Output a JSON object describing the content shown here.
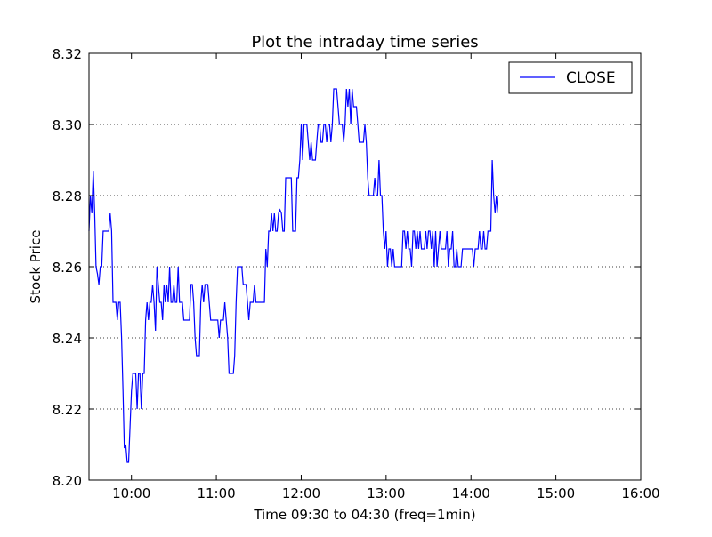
{
  "chart_data": {
    "type": "line",
    "title": "Plot the intraday time series",
    "xlabel": "Time 09:30 to 04:30 (freq=1min)",
    "ylabel": "Stock Price",
    "xlim": [
      "09:30",
      "16:00"
    ],
    "ylim": [
      8.2,
      8.32
    ],
    "x_ticks": [
      "10:00",
      "11:00",
      "12:00",
      "13:00",
      "14:00",
      "15:00",
      "16:00"
    ],
    "y_ticks": [
      "8.20",
      "8.22",
      "8.24",
      "8.26",
      "8.28",
      "8.30",
      "8.32"
    ],
    "grid": "horizontal-dotted",
    "legend": {
      "placement": "top-right",
      "entries": [
        "CLOSE"
      ]
    },
    "series": [
      {
        "name": "CLOSE",
        "color": "#0000ff",
        "points": [
          [
            "09:30",
            8.27
          ],
          [
            "09:31",
            8.28
          ],
          [
            "09:32",
            8.275
          ],
          [
            "09:33",
            8.287
          ],
          [
            "09:34",
            8.275
          ],
          [
            "09:35",
            8.26
          ],
          [
            "09:36",
            8.258
          ],
          [
            "09:37",
            8.255
          ],
          [
            "09:38",
            8.26
          ],
          [
            "09:39",
            8.26
          ],
          [
            "09:40",
            8.27
          ],
          [
            "09:41",
            8.27
          ],
          [
            "09:42",
            8.27
          ],
          [
            "09:43",
            8.27
          ],
          [
            "09:44",
            8.27
          ],
          [
            "09:45",
            8.275
          ],
          [
            "09:46",
            8.27
          ],
          [
            "09:47",
            8.25
          ],
          [
            "09:48",
            8.25
          ],
          [
            "09:49",
            8.25
          ],
          [
            "09:50",
            8.245
          ],
          [
            "09:51",
            8.25
          ],
          [
            "09:52",
            8.25
          ],
          [
            "09:53",
            8.24
          ],
          [
            "09:54",
            8.225
          ],
          [
            "09:55",
            8.209
          ],
          [
            "09:56",
            8.21
          ],
          [
            "09:57",
            8.205
          ],
          [
            "09:58",
            8.205
          ],
          [
            "09:59",
            8.215
          ],
          [
            "10:00",
            8.225
          ],
          [
            "10:01",
            8.23
          ],
          [
            "10:02",
            8.23
          ],
          [
            "10:03",
            8.23
          ],
          [
            "10:04",
            8.22
          ],
          [
            "10:05",
            8.23
          ],
          [
            "10:06",
            8.23
          ],
          [
            "10:07",
            8.22
          ],
          [
            "10:08",
            8.23
          ],
          [
            "10:09",
            8.23
          ],
          [
            "10:10",
            8.245
          ],
          [
            "10:11",
            8.25
          ],
          [
            "10:12",
            8.245
          ],
          [
            "10:13",
            8.25
          ],
          [
            "10:14",
            8.25
          ],
          [
            "10:15",
            8.255
          ],
          [
            "10:16",
            8.25
          ],
          [
            "10:17",
            8.242
          ],
          [
            "10:18",
            8.26
          ],
          [
            "10:19",
            8.255
          ],
          [
            "10:20",
            8.25
          ],
          [
            "10:21",
            8.25
          ],
          [
            "10:22",
            8.245
          ],
          [
            "10:23",
            8.255
          ],
          [
            "10:24",
            8.25
          ],
          [
            "10:25",
            8.255
          ],
          [
            "10:26",
            8.25
          ],
          [
            "10:27",
            8.26
          ],
          [
            "10:28",
            8.25
          ],
          [
            "10:29",
            8.25
          ],
          [
            "10:30",
            8.255
          ],
          [
            "10:31",
            8.25
          ],
          [
            "10:32",
            8.25
          ],
          [
            "10:33",
            8.26
          ],
          [
            "10:34",
            8.25
          ],
          [
            "10:35",
            8.25
          ],
          [
            "10:36",
            8.25
          ],
          [
            "10:37",
            8.245
          ],
          [
            "10:38",
            8.245
          ],
          [
            "10:39",
            8.245
          ],
          [
            "10:40",
            8.245
          ],
          [
            "10:41",
            8.245
          ],
          [
            "10:42",
            8.255
          ],
          [
            "10:43",
            8.255
          ],
          [
            "10:44",
            8.25
          ],
          [
            "10:45",
            8.24
          ],
          [
            "10:46",
            8.235
          ],
          [
            "10:47",
            8.235
          ],
          [
            "10:48",
            8.235
          ],
          [
            "10:49",
            8.25
          ],
          [
            "10:50",
            8.255
          ],
          [
            "10:51",
            8.25
          ],
          [
            "10:52",
            8.255
          ],
          [
            "10:53",
            8.255
          ],
          [
            "10:54",
            8.255
          ],
          [
            "10:55",
            8.25
          ],
          [
            "10:56",
            8.245
          ],
          [
            "10:57",
            8.245
          ],
          [
            "10:58",
            8.245
          ],
          [
            "10:59",
            8.245
          ],
          [
            "11:00",
            8.245
          ],
          [
            "11:01",
            8.245
          ],
          [
            "11:02",
            8.24
          ],
          [
            "11:03",
            8.245
          ],
          [
            "11:04",
            8.245
          ],
          [
            "11:05",
            8.245
          ],
          [
            "11:06",
            8.25
          ],
          [
            "11:07",
            8.245
          ],
          [
            "11:08",
            8.24
          ],
          [
            "11:09",
            8.23
          ],
          [
            "11:10",
            8.23
          ],
          [
            "11:11",
            8.23
          ],
          [
            "11:12",
            8.23
          ],
          [
            "11:13",
            8.235
          ],
          [
            "11:14",
            8.25
          ],
          [
            "11:15",
            8.26
          ],
          [
            "11:16",
            8.26
          ],
          [
            "11:17",
            8.26
          ],
          [
            "11:18",
            8.26
          ],
          [
            "11:19",
            8.255
          ],
          [
            "11:20",
            8.255
          ],
          [
            "11:21",
            8.255
          ],
          [
            "11:22",
            8.25
          ],
          [
            "11:23",
            8.245
          ],
          [
            "11:24",
            8.25
          ],
          [
            "11:25",
            8.25
          ],
          [
            "11:26",
            8.25
          ],
          [
            "11:27",
            8.255
          ],
          [
            "11:28",
            8.25
          ],
          [
            "11:29",
            8.25
          ],
          [
            "11:30",
            8.25
          ],
          [
            "11:31",
            8.25
          ],
          [
            "11:32",
            8.25
          ],
          [
            "11:33",
            8.25
          ],
          [
            "11:34",
            8.25
          ],
          [
            "11:35",
            8.265
          ],
          [
            "11:36",
            8.26
          ],
          [
            "11:37",
            8.27
          ],
          [
            "11:38",
            8.27
          ],
          [
            "11:39",
            8.275
          ],
          [
            "11:40",
            8.27
          ],
          [
            "11:41",
            8.275
          ],
          [
            "11:42",
            8.27
          ],
          [
            "11:43",
            8.27
          ],
          [
            "11:44",
            8.275
          ],
          [
            "11:45",
            8.276
          ],
          [
            "11:46",
            8.275
          ],
          [
            "11:47",
            8.27
          ],
          [
            "11:48",
            8.27
          ],
          [
            "11:49",
            8.285
          ],
          [
            "11:50",
            8.285
          ],
          [
            "11:51",
            8.285
          ],
          [
            "11:52",
            8.285
          ],
          [
            "11:53",
            8.285
          ],
          [
            "11:54",
            8.27
          ],
          [
            "11:55",
            8.27
          ],
          [
            "11:56",
            8.27
          ],
          [
            "11:57",
            8.285
          ],
          [
            "11:58",
            8.285
          ],
          [
            "11:59",
            8.29
          ],
          [
            "12:00",
            8.3
          ],
          [
            "12:01",
            8.29
          ],
          [
            "12:02",
            8.3
          ],
          [
            "12:03",
            8.3
          ],
          [
            "12:04",
            8.3
          ],
          [
            "12:05",
            8.295
          ],
          [
            "12:06",
            8.29
          ],
          [
            "12:07",
            8.295
          ],
          [
            "12:08",
            8.29
          ],
          [
            "12:09",
            8.29
          ],
          [
            "12:10",
            8.29
          ],
          [
            "12:11",
            8.295
          ],
          [
            "12:12",
            8.3
          ],
          [
            "12:13",
            8.3
          ],
          [
            "12:14",
            8.295
          ],
          [
            "12:15",
            8.295
          ],
          [
            "12:16",
            8.3
          ],
          [
            "12:17",
            8.3
          ],
          [
            "12:18",
            8.295
          ],
          [
            "12:19",
            8.3
          ],
          [
            "12:20",
            8.3
          ],
          [
            "12:21",
            8.295
          ],
          [
            "12:22",
            8.3
          ],
          [
            "12:23",
            8.31
          ],
          [
            "12:24",
            8.31
          ],
          [
            "12:25",
            8.31
          ],
          [
            "12:26",
            8.305
          ],
          [
            "12:27",
            8.3
          ],
          [
            "12:28",
            8.3
          ],
          [
            "12:29",
            8.3
          ],
          [
            "12:30",
            8.295
          ],
          [
            "12:31",
            8.3
          ],
          [
            "12:32",
            8.31
          ],
          [
            "12:33",
            8.305
          ],
          [
            "12:34",
            8.31
          ],
          [
            "12:35",
            8.3
          ],
          [
            "12:36",
            8.31
          ],
          [
            "12:37",
            8.305
          ],
          [
            "12:38",
            8.305
          ],
          [
            "12:39",
            8.305
          ],
          [
            "12:40",
            8.3
          ],
          [
            "12:41",
            8.295
          ],
          [
            "12:42",
            8.295
          ],
          [
            "12:43",
            8.295
          ],
          [
            "12:44",
            8.295
          ],
          [
            "12:45",
            8.3
          ],
          [
            "12:46",
            8.295
          ],
          [
            "12:47",
            8.285
          ],
          [
            "12:48",
            8.28
          ],
          [
            "12:49",
            8.28
          ],
          [
            "12:50",
            8.28
          ],
          [
            "12:51",
            8.28
          ],
          [
            "12:52",
            8.285
          ],
          [
            "12:53",
            8.28
          ],
          [
            "12:54",
            8.28
          ],
          [
            "12:55",
            8.29
          ],
          [
            "12:56",
            8.28
          ],
          [
            "12:57",
            8.28
          ],
          [
            "12:58",
            8.27
          ],
          [
            "12:59",
            8.265
          ],
          [
            "13:00",
            8.27
          ],
          [
            "13:01",
            8.26
          ],
          [
            "13:02",
            8.265
          ],
          [
            "13:03",
            8.265
          ],
          [
            "13:04",
            8.26
          ],
          [
            "13:05",
            8.265
          ],
          [
            "13:06",
            8.26
          ],
          [
            "13:07",
            8.26
          ],
          [
            "13:08",
            8.26
          ],
          [
            "13:09",
            8.26
          ],
          [
            "13:10",
            8.26
          ],
          [
            "13:11",
            8.26
          ],
          [
            "13:12",
            8.27
          ],
          [
            "13:13",
            8.27
          ],
          [
            "13:14",
            8.265
          ],
          [
            "13:15",
            8.27
          ],
          [
            "13:16",
            8.265
          ],
          [
            "13:17",
            8.265
          ],
          [
            "13:18",
            8.26
          ],
          [
            "13:19",
            8.27
          ],
          [
            "13:20",
            8.27
          ],
          [
            "13:21",
            8.265
          ],
          [
            "13:22",
            8.27
          ],
          [
            "13:23",
            8.265
          ],
          [
            "13:24",
            8.27
          ],
          [
            "13:25",
            8.265
          ],
          [
            "13:26",
            8.265
          ],
          [
            "13:27",
            8.265
          ],
          [
            "13:28",
            8.27
          ],
          [
            "13:29",
            8.265
          ],
          [
            "13:30",
            8.27
          ],
          [
            "13:31",
            8.27
          ],
          [
            "13:32",
            8.265
          ],
          [
            "13:33",
            8.27
          ],
          [
            "13:34",
            8.26
          ],
          [
            "13:35",
            8.27
          ],
          [
            "13:36",
            8.26
          ],
          [
            "13:37",
            8.265
          ],
          [
            "13:38",
            8.27
          ],
          [
            "13:39",
            8.265
          ],
          [
            "13:40",
            8.265
          ],
          [
            "13:41",
            8.265
          ],
          [
            "13:42",
            8.265
          ],
          [
            "13:43",
            8.27
          ],
          [
            "13:44",
            8.26
          ],
          [
            "13:45",
            8.265
          ],
          [
            "13:46",
            8.265
          ],
          [
            "13:47",
            8.27
          ],
          [
            "13:48",
            8.26
          ],
          [
            "13:49",
            8.26
          ],
          [
            "13:50",
            8.265
          ],
          [
            "13:51",
            8.26
          ],
          [
            "13:52",
            8.26
          ],
          [
            "13:53",
            8.26
          ],
          [
            "13:54",
            8.265
          ],
          [
            "13:55",
            8.265
          ],
          [
            "13:56",
            8.265
          ],
          [
            "13:57",
            8.265
          ],
          [
            "13:58",
            8.265
          ],
          [
            "13:59",
            8.265
          ],
          [
            "14:00",
            8.265
          ],
          [
            "14:01",
            8.265
          ],
          [
            "14:02",
            8.26
          ],
          [
            "14:03",
            8.265
          ],
          [
            "14:04",
            8.265
          ],
          [
            "14:05",
            8.265
          ],
          [
            "14:06",
            8.27
          ],
          [
            "14:07",
            8.265
          ],
          [
            "14:08",
            8.265
          ],
          [
            "14:09",
            8.27
          ],
          [
            "14:10",
            8.265
          ],
          [
            "14:11",
            8.265
          ],
          [
            "14:12",
            8.27
          ],
          [
            "14:13",
            8.27
          ],
          [
            "14:14",
            8.27
          ],
          [
            "14:15",
            8.29
          ],
          [
            "14:16",
            8.28
          ],
          [
            "14:17",
            8.275
          ],
          [
            "14:18",
            8.28
          ],
          [
            "14:19",
            8.275
          ]
        ]
      }
    ]
  }
}
